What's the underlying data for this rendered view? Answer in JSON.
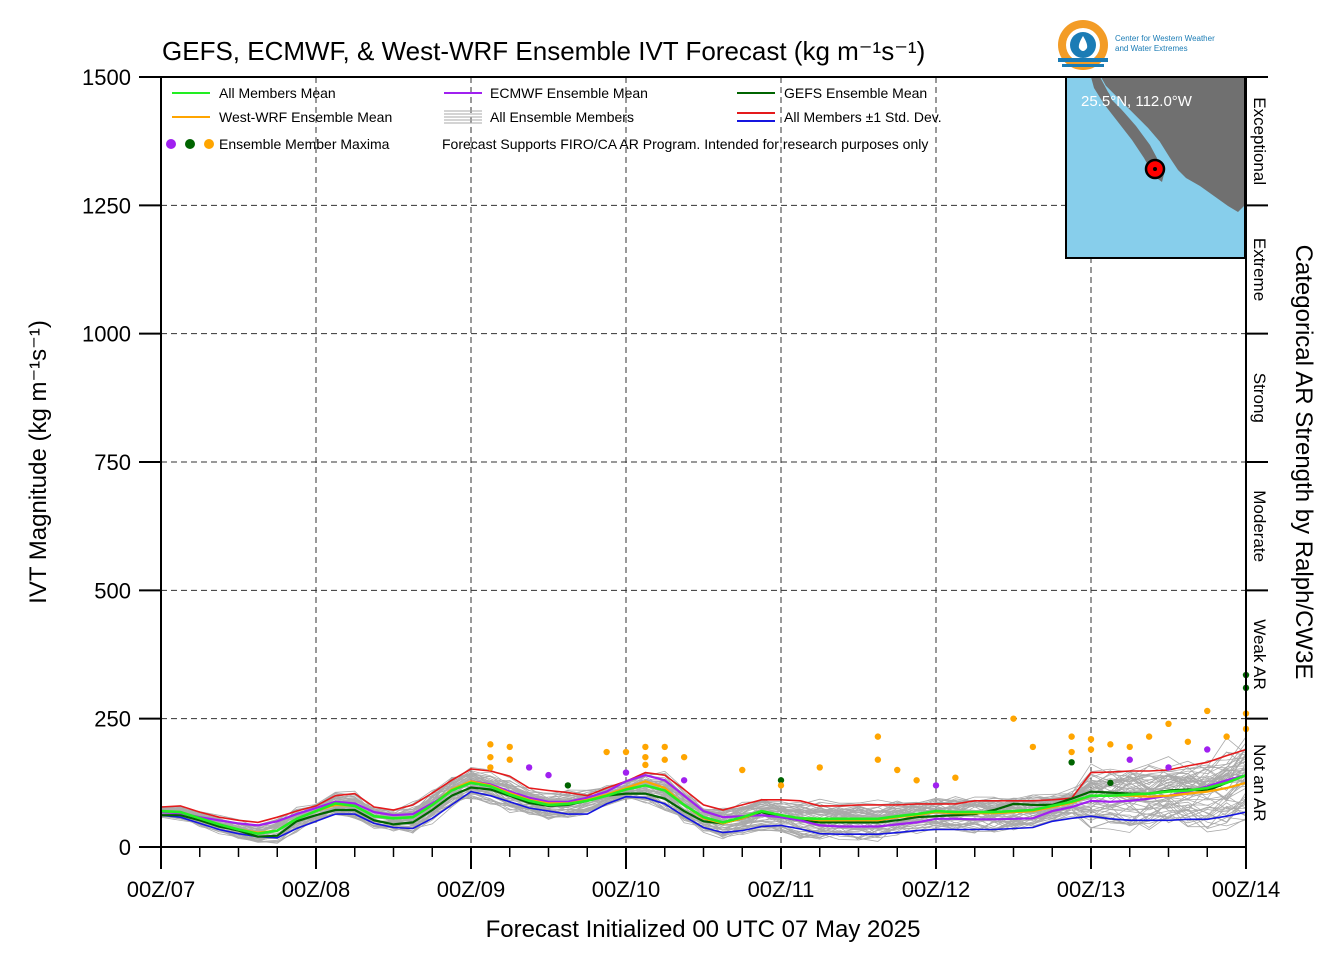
{
  "logo": {
    "text_line1": "Center for Western Weather",
    "text_line2": "and Water Extremes"
  },
  "map_inset": {
    "location_label": "25.5°N, 112.0°W",
    "ocean_color": "#87ceeb",
    "land_color": "#707070"
  },
  "colors": {
    "all_members_mean": "#22ee22",
    "west_wrf_mean": "#ffa500",
    "ecmwf_mean": "#a020f0",
    "gefs_mean": "#006400",
    "std_upper": "#e41a1c",
    "std_lower": "#1515e0",
    "ensemble_members": "#aaaaaa",
    "maxima_ecmwf": "#a020f0",
    "maxima_gefs": "#006400",
    "maxima_westwrf": "#ffa500"
  },
  "chart_data": {
    "type": "line",
    "title": "GEFS, ECMWF, & West-WRF Ensemble IVT Forecast (kg m⁻¹s⁻¹)",
    "xlabel": "Forecast Initialized 00 UTC 07 May 2025",
    "ylabel": "IVT Magnitude (kg m⁻¹s⁻¹)",
    "right_axis_label": "Categorical AR Strength by Ralph/CW3E",
    "ylim": [
      0,
      1500
    ],
    "yticks": [
      0,
      250,
      500,
      750,
      1000,
      1250,
      1500
    ],
    "xlim": [
      0,
      168
    ],
    "x_unit": "forecast hour",
    "xtick_hours": [
      0,
      24,
      48,
      72,
      96,
      120,
      144,
      168
    ],
    "xtick_labels": [
      "00Z/07",
      "00Z/08",
      "00Z/09",
      "00Z/10",
      "00Z/11",
      "00Z/12",
      "00Z/13",
      "00Z/14"
    ],
    "grid": true,
    "legend_placement": "top-left",
    "legend": {
      "all_members_mean": "All Members Mean",
      "west_wrf_mean": "West-WRF Ensemble Mean",
      "maxima": "Ensemble Member Maxima",
      "ecmwf_mean": "ECMWF Ensemble Mean",
      "all_members": "All Ensemble Members",
      "gefs_mean": "GEFS Ensemble Mean",
      "std_dev": "All Members ±1 Std. Dev.",
      "note": "Forecast Supports FIRO/CA AR Program. Intended for research purposes only"
    },
    "categories": [
      {
        "label": "Not an AR",
        "from": 0,
        "to": 250
      },
      {
        "label": "Weak AR",
        "from": 250,
        "to": 500
      },
      {
        "label": "Moderate",
        "from": 500,
        "to": 750
      },
      {
        "label": "Strong",
        "from": 750,
        "to": 1000
      },
      {
        "label": "Extreme",
        "from": 1000,
        "to": 1250
      },
      {
        "label": "Exceptional",
        "from": 1250,
        "to": 1500
      }
    ],
    "x": [
      0,
      3,
      6,
      9,
      12,
      15,
      18,
      21,
      24,
      27,
      30,
      33,
      36,
      39,
      42,
      45,
      48,
      51,
      54,
      57,
      60,
      63,
      66,
      69,
      72,
      75,
      78,
      81,
      84,
      87,
      90,
      93,
      96,
      99,
      102,
      105,
      108,
      111,
      114,
      117,
      120,
      123,
      126,
      129,
      132,
      135,
      138,
      141,
      144,
      147,
      150,
      153,
      156,
      159,
      162,
      165,
      168
    ],
    "series": [
      {
        "name": "All Members ±1 Std. Dev.",
        "key": "std_upper",
        "values": [
          78,
          80,
          68,
          58,
          52,
          48,
          58,
          70,
          80,
          100,
          104,
          78,
          72,
          82,
          105,
          130,
          152,
          148,
          138,
          115,
          110,
          106,
          100,
          115,
          128,
          145,
          140,
          112,
          82,
          72,
          82,
          92,
          92,
          90,
          80,
          80,
          82,
          82,
          82,
          84,
          84,
          84,
          90,
          90,
          90,
          90,
          92,
          95,
          145,
          146,
          148,
          148,
          150,
          158,
          165,
          178,
          190
        ]
      },
      {
        "name": "All Members Mean",
        "key": "all_mean",
        "values": [
          70,
          68,
          56,
          44,
          34,
          26,
          32,
          55,
          70,
          85,
          80,
          60,
          56,
          58,
          82,
          110,
          125,
          118,
          102,
          90,
          82,
          84,
          90,
          100,
          112,
          120,
          110,
          82,
          58,
          48,
          58,
          70,
          62,
          56,
          55,
          55,
          55,
          55,
          60,
          64,
          70,
          68,
          68,
          68,
          70,
          72,
          80,
          88,
          100,
          100,
          102,
          104,
          108,
          110,
          115,
          125,
          140
        ]
      },
      {
        "name": "West-WRF Ensemble Mean",
        "key": "westwrf_mean",
        "values": [
          70,
          68,
          56,
          44,
          34,
          28,
          32,
          55,
          70,
          82,
          80,
          60,
          56,
          58,
          82,
          112,
          128,
          120,
          105,
          92,
          85,
          85,
          92,
          102,
          115,
          128,
          115,
          82,
          56,
          46,
          56,
          70,
          62,
          56,
          52,
          52,
          52,
          52,
          58,
          62,
          68,
          66,
          66,
          66,
          68,
          70,
          78,
          86,
          100,
          100,
          100,
          98,
          100,
          104,
          108,
          115,
          125
        ]
      },
      {
        "name": "ECMWF Ensemble Mean",
        "key": "ecmwf_mean",
        "values": [
          68,
          66,
          58,
          52,
          46,
          42,
          50,
          64,
          76,
          88,
          85,
          68,
          62,
          64,
          85,
          110,
          128,
          122,
          108,
          96,
          88,
          88,
          96,
          108,
          128,
          140,
          130,
          100,
          70,
          58,
          60,
          62,
          58,
          52,
          42,
          40,
          40,
          40,
          44,
          48,
          55,
          55,
          54,
          54,
          55,
          56,
          70,
          78,
          90,
          88,
          90,
          94,
          100,
          108,
          118,
          130,
          140
        ]
      },
      {
        "name": "GEFS Ensemble Mean",
        "key": "gefs_mean",
        "values": [
          62,
          62,
          52,
          40,
          32,
          20,
          22,
          50,
          62,
          72,
          72,
          52,
          44,
          48,
          72,
          100,
          116,
          112,
          100,
          86,
          80,
          82,
          90,
          100,
          104,
          104,
          94,
          70,
          50,
          46,
          56,
          68,
          58,
          52,
          48,
          48,
          48,
          48,
          52,
          58,
          60,
          62,
          64,
          72,
          84,
          82,
          82,
          94,
          108,
          106,
          104,
          104,
          110,
          112,
          110,
          125,
          140
        ]
      },
      {
        "name": "All Members ±1 Std. Dev.",
        "key": "std_lower",
        "values": [
          62,
          58,
          46,
          34,
          26,
          20,
          18,
          36,
          50,
          64,
          64,
          46,
          38,
          36,
          56,
          82,
          108,
          100,
          88,
          76,
          70,
          64,
          64,
          84,
          98,
          96,
          84,
          60,
          38,
          28,
          32,
          40,
          42,
          35,
          26,
          25,
          25,
          25,
          28,
          32,
          34,
          34,
          34,
          34,
          36,
          38,
          50,
          56,
          60,
          55,
          52,
          52,
          52,
          54,
          54,
          60,
          68
        ]
      }
    ],
    "maxima_points": [
      {
        "x": 51,
        "y": 200,
        "model": "westwrf"
      },
      {
        "x": 51,
        "y": 175,
        "model": "westwrf"
      },
      {
        "x": 51,
        "y": 155,
        "model": "westwrf"
      },
      {
        "x": 54,
        "y": 195,
        "model": "westwrf"
      },
      {
        "x": 54,
        "y": 170,
        "model": "westwrf"
      },
      {
        "x": 57,
        "y": 155,
        "model": "ecmwf"
      },
      {
        "x": 60,
        "y": 140,
        "model": "ecmwf"
      },
      {
        "x": 63,
        "y": 120,
        "model": "gefs"
      },
      {
        "x": 69,
        "y": 185,
        "model": "westwrf"
      },
      {
        "x": 72,
        "y": 185,
        "model": "westwrf"
      },
      {
        "x": 72,
        "y": 145,
        "model": "ecmwf"
      },
      {
        "x": 75,
        "y": 195,
        "model": "westwrf"
      },
      {
        "x": 75,
        "y": 175,
        "model": "westwrf"
      },
      {
        "x": 75,
        "y": 160,
        "model": "westwrf"
      },
      {
        "x": 78,
        "y": 195,
        "model": "westwrf"
      },
      {
        "x": 78,
        "y": 170,
        "model": "westwrf"
      },
      {
        "x": 81,
        "y": 175,
        "model": "westwrf"
      },
      {
        "x": 81,
        "y": 130,
        "model": "ecmwf"
      },
      {
        "x": 90,
        "y": 150,
        "model": "westwrf"
      },
      {
        "x": 96,
        "y": 130,
        "model": "gefs"
      },
      {
        "x": 96,
        "y": 120,
        "model": "westwrf"
      },
      {
        "x": 102,
        "y": 155,
        "model": "westwrf"
      },
      {
        "x": 111,
        "y": 215,
        "model": "westwrf"
      },
      {
        "x": 111,
        "y": 170,
        "model": "westwrf"
      },
      {
        "x": 114,
        "y": 150,
        "model": "westwrf"
      },
      {
        "x": 117,
        "y": 130,
        "model": "westwrf"
      },
      {
        "x": 120,
        "y": 120,
        "model": "ecmwf"
      },
      {
        "x": 123,
        "y": 135,
        "model": "westwrf"
      },
      {
        "x": 132,
        "y": 250,
        "model": "westwrf"
      },
      {
        "x": 135,
        "y": 195,
        "model": "westwrf"
      },
      {
        "x": 141,
        "y": 215,
        "model": "westwrf"
      },
      {
        "x": 141,
        "y": 185,
        "model": "westwrf"
      },
      {
        "x": 141,
        "y": 165,
        "model": "gefs"
      },
      {
        "x": 144,
        "y": 210,
        "model": "westwrf"
      },
      {
        "x": 144,
        "y": 190,
        "model": "westwrf"
      },
      {
        "x": 147,
        "y": 200,
        "model": "westwrf"
      },
      {
        "x": 147,
        "y": 125,
        "model": "gefs"
      },
      {
        "x": 150,
        "y": 195,
        "model": "westwrf"
      },
      {
        "x": 150,
        "y": 170,
        "model": "ecmwf"
      },
      {
        "x": 153,
        "y": 215,
        "model": "westwrf"
      },
      {
        "x": 156,
        "y": 240,
        "model": "westwrf"
      },
      {
        "x": 156,
        "y": 155,
        "model": "ecmwf"
      },
      {
        "x": 159,
        "y": 205,
        "model": "westwrf"
      },
      {
        "x": 162,
        "y": 265,
        "model": "westwrf"
      },
      {
        "x": 162,
        "y": 190,
        "model": "ecmwf"
      },
      {
        "x": 165,
        "y": 215,
        "model": "westwrf"
      },
      {
        "x": 168,
        "y": 335,
        "model": "gefs"
      },
      {
        "x": 168,
        "y": 310,
        "model": "gefs"
      },
      {
        "x": 168,
        "y": 260,
        "model": "westwrf"
      },
      {
        "x": 168,
        "y": 230,
        "model": "westwrf"
      }
    ]
  }
}
